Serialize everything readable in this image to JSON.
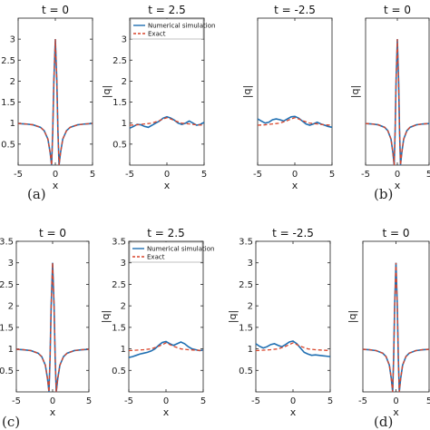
{
  "labels": {
    "a": "(a)",
    "b": "(b)",
    "c": "(c)",
    "d": "(d)"
  },
  "colors": {
    "numerical": "#1f6fb2",
    "exact": "#d9452b",
    "axis": "#222222"
  },
  "chart_data": [
    {
      "type": "line",
      "title": "t = 0",
      "xlabel": "x",
      "ylabel": "",
      "xlim": [
        -5,
        5
      ],
      "ylim": [
        0,
        3.5
      ],
      "xticks": [
        "-5",
        "0",
        "5"
      ],
      "yticks": [
        "0.5",
        "1",
        "1.5",
        "2",
        "2.5",
        "3"
      ],
      "series": [
        {
          "role": "numerical",
          "x": [
            -5,
            -4,
            -3,
            -2,
            -1.5,
            -1,
            -0.7,
            -0.5,
            -0.35,
            -0.2,
            0,
            0.2,
            0.35,
            0.5,
            0.7,
            1,
            1.5,
            2,
            3,
            4,
            5
          ],
          "y": [
            0.99,
            0.98,
            0.96,
            0.9,
            0.82,
            0.62,
            0.3,
            0.0,
            0.8,
            2.0,
            3.0,
            2.0,
            0.8,
            0.0,
            0.3,
            0.62,
            0.82,
            0.9,
            0.96,
            0.98,
            0.99
          ]
        },
        {
          "role": "exact",
          "x": [
            -5,
            -4,
            -3,
            -2,
            -1.5,
            -1,
            -0.7,
            -0.5,
            -0.35,
            -0.2,
            0,
            0.2,
            0.35,
            0.5,
            0.7,
            1,
            1.5,
            2,
            3,
            4,
            5
          ],
          "y": [
            0.99,
            0.98,
            0.96,
            0.9,
            0.82,
            0.62,
            0.3,
            0.0,
            0.8,
            2.0,
            3.0,
            2.0,
            0.8,
            0.0,
            0.3,
            0.62,
            0.82,
            0.9,
            0.96,
            0.98,
            0.99
          ]
        }
      ]
    },
    {
      "type": "line",
      "title": "t = 2.5",
      "xlabel": "x",
      "ylabel": "|q|",
      "xlim": [
        -5,
        5
      ],
      "ylim": [
        0,
        3.5
      ],
      "xticks": [
        "-5",
        "0",
        "5"
      ],
      "yticks": [
        "0.5",
        "1",
        "1.5",
        "2",
        "2.5",
        "3"
      ],
      "legend": {
        "position": "top",
        "entries": [
          "Numerical simulation",
          "Exact"
        ]
      },
      "series": [
        {
          "name": "Numerical simulation",
          "role": "numerical",
          "x": [
            -5,
            -4.5,
            -4,
            -3.5,
            -3,
            -2.5,
            -2,
            -1.5,
            -1,
            -0.5,
            0,
            0.5,
            1,
            1.5,
            2,
            2.5,
            3,
            3.5,
            4,
            4.5,
            5
          ],
          "y": [
            0.88,
            0.92,
            0.97,
            0.96,
            0.92,
            0.9,
            0.95,
            1.0,
            1.05,
            1.12,
            1.15,
            1.12,
            1.07,
            1.0,
            0.97,
            1.0,
            1.05,
            1.0,
            0.95,
            0.97,
            1.02
          ]
        },
        {
          "name": "Exact",
          "role": "exact",
          "x": [
            -5,
            -4,
            -3,
            -2,
            -1,
            -0.5,
            0,
            0.5,
            1,
            2,
            3,
            4,
            5
          ],
          "y": [
            0.95,
            0.96,
            0.98,
            1.0,
            1.06,
            1.1,
            1.13,
            1.1,
            1.06,
            1.0,
            0.98,
            0.96,
            0.95
          ]
        }
      ]
    },
    {
      "type": "line",
      "title": "t = -2.5",
      "xlabel": "x",
      "ylabel": "|q|",
      "xlim": [
        -5,
        5
      ],
      "ylim": [
        0,
        3.5
      ],
      "xticks": [
        "-5",
        "0",
        "5"
      ],
      "yticks": [],
      "series": [
        {
          "role": "numerical",
          "x": [
            -5,
            -4.5,
            -4,
            -3.5,
            -3,
            -2.5,
            -2,
            -1.5,
            -1,
            -0.5,
            0,
            0.5,
            1,
            1.5,
            2,
            2.5,
            3,
            3.5,
            4,
            4.5,
            5
          ],
          "y": [
            1.1,
            1.05,
            1.0,
            1.02,
            1.08,
            1.1,
            1.08,
            1.05,
            1.1,
            1.15,
            1.16,
            1.12,
            1.05,
            0.98,
            0.95,
            0.98,
            1.02,
            0.98,
            0.95,
            0.92,
            0.9
          ]
        },
        {
          "role": "exact",
          "x": [
            -5,
            -4,
            -3,
            -2,
            -1,
            -0.5,
            0,
            0.5,
            1,
            2,
            3,
            4,
            5
          ],
          "y": [
            0.95,
            0.96,
            0.98,
            1.0,
            1.06,
            1.1,
            1.13,
            1.1,
            1.06,
            1.0,
            0.98,
            0.96,
            0.95
          ]
        }
      ]
    },
    {
      "type": "line",
      "title": "t = 0",
      "xlabel": "x",
      "ylabel": "|q|",
      "xlim": [
        -5,
        5
      ],
      "ylim": [
        0,
        3.5
      ],
      "xticks": [
        "-5",
        "0",
        "5"
      ],
      "yticks": [],
      "series": [
        {
          "role": "numerical",
          "x": [
            -5,
            -4,
            -3,
            -2,
            -1.5,
            -1,
            -0.7,
            -0.5,
            -0.35,
            -0.2,
            0,
            0.2,
            0.35,
            0.5,
            0.7,
            1,
            1.5,
            2,
            3,
            4,
            5
          ],
          "y": [
            0.99,
            0.98,
            0.96,
            0.9,
            0.82,
            0.62,
            0.3,
            0.0,
            0.8,
            2.0,
            3.0,
            2.0,
            0.8,
            0.0,
            0.3,
            0.62,
            0.82,
            0.9,
            0.96,
            0.98,
            0.99
          ]
        },
        {
          "role": "exact",
          "x": [
            -5,
            -4,
            -3,
            -2,
            -1.5,
            -1,
            -0.7,
            -0.5,
            -0.35,
            -0.2,
            0,
            0.2,
            0.35,
            0.5,
            0.7,
            1,
            1.5,
            2,
            3,
            4,
            5
          ],
          "y": [
            0.99,
            0.98,
            0.96,
            0.9,
            0.82,
            0.62,
            0.3,
            0.0,
            0.8,
            2.0,
            3.0,
            2.0,
            0.8,
            0.0,
            0.3,
            0.62,
            0.82,
            0.9,
            0.96,
            0.98,
            0.99
          ]
        }
      ]
    },
    {
      "type": "line",
      "title": "t = 0",
      "xlabel": "x",
      "ylabel": "",
      "xlim": [
        -5,
        5
      ],
      "ylim": [
        0,
        3.5
      ],
      "xticks": [
        "-5",
        "0",
        "5"
      ],
      "yticks": [
        "0.5",
        "1",
        "1.5",
        "2",
        "2.5",
        "3",
        "3.5"
      ],
      "series": [
        {
          "role": "numerical",
          "x": [
            -5,
            -4,
            -3,
            -2,
            -1.5,
            -1,
            -0.7,
            -0.5,
            -0.35,
            -0.2,
            0,
            0.2,
            0.35,
            0.5,
            0.7,
            1,
            1.5,
            2,
            3,
            4,
            5
          ],
          "y": [
            0.99,
            0.98,
            0.96,
            0.9,
            0.82,
            0.62,
            0.3,
            0.0,
            0.8,
            2.0,
            3.0,
            2.0,
            0.8,
            0.0,
            0.3,
            0.62,
            0.82,
            0.9,
            0.96,
            0.98,
            0.99
          ]
        },
        {
          "role": "exact",
          "x": [
            -5,
            -4,
            -3,
            -2,
            -1.5,
            -1,
            -0.7,
            -0.5,
            -0.35,
            -0.2,
            0,
            0.2,
            0.35,
            0.5,
            0.7,
            1,
            1.5,
            2,
            3,
            4,
            5
          ],
          "y": [
            0.99,
            0.98,
            0.96,
            0.9,
            0.82,
            0.62,
            0.3,
            0.0,
            0.8,
            2.0,
            3.0,
            2.0,
            0.8,
            0.0,
            0.3,
            0.62,
            0.82,
            0.9,
            0.96,
            0.98,
            0.99
          ]
        }
      ]
    },
    {
      "type": "line",
      "title": "t = 2.5",
      "xlabel": "x",
      "ylabel": "|q|",
      "xlim": [
        -5,
        5
      ],
      "ylim": [
        0,
        3.5
      ],
      "xticks": [
        "-5",
        "0",
        "5"
      ],
      "yticks": [
        "0.5",
        "1",
        "1.5",
        "2",
        "2.5",
        "3",
        "3.5"
      ],
      "legend": {
        "position": "top",
        "entries": [
          "Numerical simulation",
          "Exact"
        ]
      },
      "series": [
        {
          "name": "Numerical simulation",
          "role": "numerical",
          "x": [
            -5,
            -4.5,
            -4,
            -3.5,
            -3,
            -2.5,
            -2,
            -1.5,
            -1,
            -0.5,
            0,
            0.5,
            1,
            1.5,
            2,
            2.5,
            3,
            3.5,
            4,
            4.5,
            5
          ],
          "y": [
            0.8,
            0.82,
            0.85,
            0.88,
            0.9,
            0.92,
            0.95,
            1.0,
            1.08,
            1.15,
            1.17,
            1.12,
            1.08,
            1.12,
            1.16,
            1.12,
            1.05,
            1.0,
            0.98,
            0.96,
            0.97
          ]
        },
        {
          "name": "Exact",
          "role": "exact",
          "x": [
            -5,
            -4,
            -3,
            -2,
            -1,
            -0.5,
            0,
            0.5,
            1,
            2,
            3,
            4,
            5
          ],
          "y": [
            0.96,
            0.97,
            0.98,
            1.0,
            1.06,
            1.1,
            1.14,
            1.1,
            1.06,
            1.0,
            0.98,
            0.97,
            0.96
          ]
        }
      ]
    },
    {
      "type": "line",
      "title": "t = -2.5",
      "xlabel": "x",
      "ylabel": "|q|",
      "xlim": [
        -5,
        5
      ],
      "ylim": [
        0,
        3.5
      ],
      "xticks": [
        "-5",
        "0",
        "5"
      ],
      "yticks": [
        "0.5",
        "1",
        "1.5",
        "2",
        "2.5",
        "3",
        "3.5"
      ],
      "series": [
        {
          "role": "numerical",
          "x": [
            -5,
            -4.5,
            -4,
            -3.5,
            -3,
            -2.5,
            -2,
            -1.5,
            -1,
            -0.5,
            0,
            0.5,
            1,
            1.5,
            2,
            2.5,
            3,
            3.5,
            4,
            4.5,
            5
          ],
          "y": [
            1.12,
            1.06,
            1.02,
            1.05,
            1.1,
            1.12,
            1.08,
            1.05,
            1.1,
            1.16,
            1.18,
            1.12,
            1.02,
            0.92,
            0.88,
            0.85,
            0.86,
            0.85,
            0.84,
            0.83,
            0.82
          ]
        },
        {
          "role": "exact",
          "x": [
            -5,
            -4,
            -3,
            -2,
            -1,
            -0.5,
            0,
            0.5,
            1,
            2,
            3,
            4,
            5
          ],
          "y": [
            0.96,
            0.97,
            0.98,
            1.0,
            1.06,
            1.1,
            1.14,
            1.1,
            1.06,
            1.0,
            0.98,
            0.97,
            0.96
          ]
        }
      ]
    },
    {
      "type": "line",
      "title": "t = 0",
      "xlabel": "x",
      "ylabel": "|q|",
      "xlim": [
        -5,
        5
      ],
      "ylim": [
        0,
        3.5
      ],
      "xticks": [
        "-5",
        "0",
        "5"
      ],
      "yticks": [],
      "series": [
        {
          "role": "numerical",
          "x": [
            -5,
            -4,
            -3,
            -2,
            -1.5,
            -1,
            -0.7,
            -0.5,
            -0.35,
            -0.2,
            0,
            0.2,
            0.35,
            0.5,
            0.7,
            1,
            1.5,
            2,
            3,
            4,
            5
          ],
          "y": [
            0.99,
            0.98,
            0.96,
            0.9,
            0.82,
            0.62,
            0.3,
            0.0,
            0.8,
            2.0,
            3.0,
            2.0,
            0.8,
            0.0,
            0.3,
            0.62,
            0.82,
            0.9,
            0.96,
            0.98,
            0.99
          ]
        },
        {
          "role": "exact",
          "x": [
            -5,
            -4,
            -3,
            -2,
            -1.5,
            -1,
            -0.7,
            -0.5,
            -0.35,
            -0.2,
            0,
            0.2,
            0.35,
            0.5,
            0.7,
            1,
            1.5,
            2,
            3,
            4,
            5
          ],
          "y": [
            0.99,
            0.98,
            0.96,
            0.9,
            0.82,
            0.62,
            0.3,
            0.0,
            0.8,
            2.0,
            3.0,
            2.0,
            0.8,
            0.0,
            0.3,
            0.62,
            0.82,
            0.9,
            0.96,
            0.98,
            0.99
          ]
        }
      ]
    }
  ]
}
